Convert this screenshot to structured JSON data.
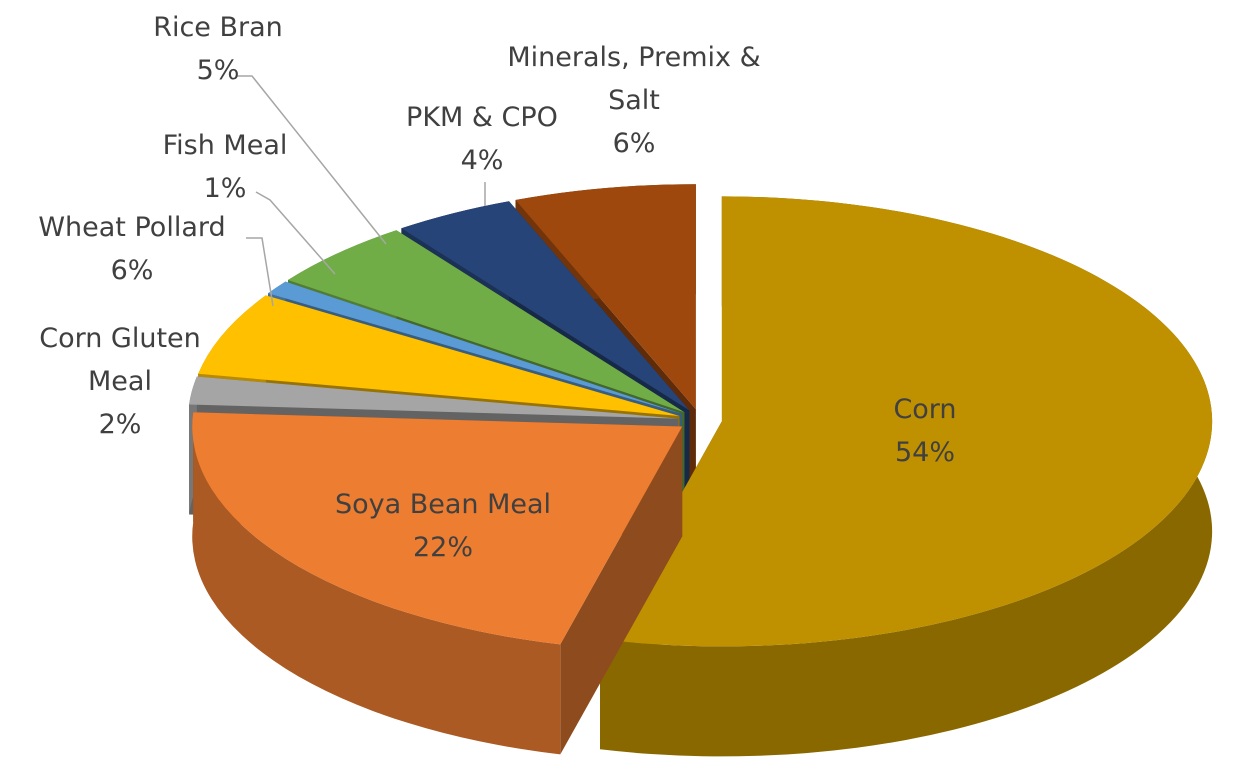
{
  "chart_data": {
    "type": "pie",
    "categories": [
      "Corn",
      "Soya Bean Meal",
      "Corn Gluten Meal",
      "Wheat Pollard",
      "Fish Meal",
      "Rice Bran",
      "PKM & CPO",
      "Minerals, Premix & Salt"
    ],
    "values": [
      54,
      22,
      2,
      6,
      1,
      5,
      4,
      6
    ],
    "value_labels": [
      "54%",
      "22%",
      "2%",
      "6%",
      "1%",
      "5%",
      "4%",
      "6%"
    ],
    "colors": [
      "#BF9000",
      "#ED7D31",
      "#A5A5A5",
      "#FFC000",
      "#5B9BD5",
      "#70AD47",
      "#264478",
      "#9E480E"
    ]
  }
}
